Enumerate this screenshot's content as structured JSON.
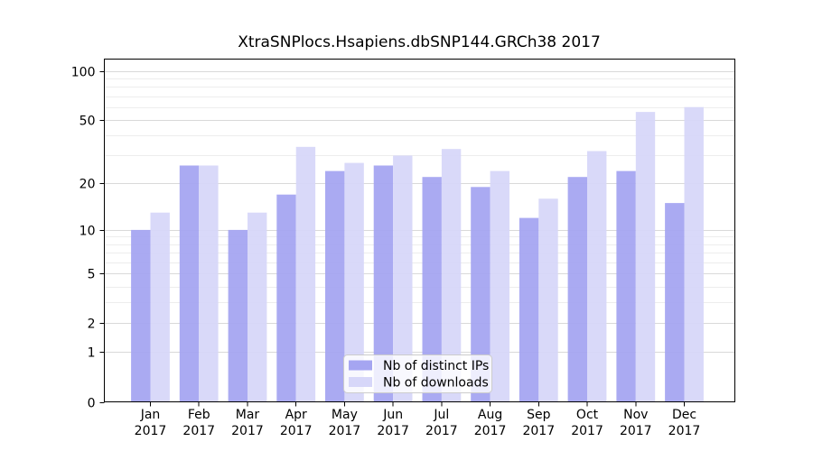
{
  "chart_data": {
    "type": "bar",
    "title": "XtraSNPlocs.Hsapiens.dbSNP144.GRCh38 2017",
    "categories": [
      "Jan",
      "Feb",
      "Mar",
      "Apr",
      "May",
      "Jun",
      "Jul",
      "Aug",
      "Sep",
      "Oct",
      "Nov",
      "Dec"
    ],
    "x_sublabel": "2017",
    "series": [
      {
        "name": "Nb of distinct IPs",
        "color": "#a5a5f1",
        "values": [
          10,
          26,
          10,
          17,
          24,
          26,
          22,
          19,
          12,
          22,
          24,
          15
        ]
      },
      {
        "name": "Nb of downloads",
        "color": "#d7d7f9",
        "values": [
          13,
          26,
          13,
          34,
          27,
          30,
          33,
          24,
          16,
          32,
          56,
          60
        ]
      }
    ],
    "yscale": "log1p",
    "yticks": [
      0,
      1,
      2,
      5,
      10,
      20,
      50,
      100
    ],
    "minor_gridlines": [
      3,
      4,
      6,
      7,
      8,
      9,
      30,
      40,
      60,
      70,
      80,
      90
    ],
    "ylim": [
      0,
      118
    ],
    "xlabel": "",
    "ylabel": "",
    "grid": "on",
    "legend_position": "inside-bottom-center",
    "colors": {
      "major_grid": "#d9d9d9",
      "minor_grid": "#ededed",
      "axis": "#000000",
      "background": "#ffffff",
      "legend_border": "#cccccc",
      "legend_background": "#ffffff"
    }
  }
}
